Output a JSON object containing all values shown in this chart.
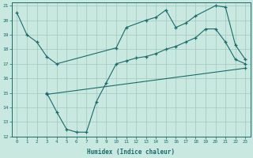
{
  "xlabel": "Humidex (Indice chaleur)",
  "bg_color": "#c8e8e0",
  "grid_color": "#a0c8c0",
  "line_color": "#1a6b6b",
  "xlim": [
    -0.5,
    23.5
  ],
  "ylim": [
    12,
    21.2
  ],
  "yticks": [
    12,
    13,
    14,
    15,
    16,
    17,
    18,
    19,
    20,
    21
  ],
  "xticks": [
    0,
    1,
    2,
    3,
    4,
    5,
    6,
    7,
    8,
    9,
    10,
    11,
    12,
    13,
    14,
    15,
    16,
    17,
    18,
    19,
    20,
    21,
    22,
    23
  ],
  "line1_x": [
    0,
    1,
    2,
    3,
    4,
    10,
    11,
    13,
    14,
    15,
    16,
    17,
    18,
    20,
    21,
    22,
    23
  ],
  "line1_y": [
    20.5,
    19.0,
    18.5,
    17.5,
    17.0,
    18.1,
    19.5,
    20.0,
    20.2,
    20.7,
    19.5,
    19.8,
    20.3,
    21.0,
    20.9,
    18.3,
    17.3
  ],
  "line2_x": [
    3,
    4,
    5,
    6,
    7,
    8,
    9,
    10,
    11,
    12,
    13,
    14,
    15,
    16,
    17,
    18,
    19,
    20,
    21,
    22,
    23
  ],
  "line2_y": [
    15.0,
    13.7,
    12.5,
    12.3,
    12.3,
    14.4,
    15.7,
    17.0,
    17.2,
    17.4,
    17.5,
    17.7,
    18.0,
    18.2,
    18.5,
    18.8,
    19.4,
    19.4,
    18.5,
    17.3,
    17.0
  ],
  "line3_x": [
    3,
    23
  ],
  "line3_y": [
    14.9,
    16.7
  ]
}
